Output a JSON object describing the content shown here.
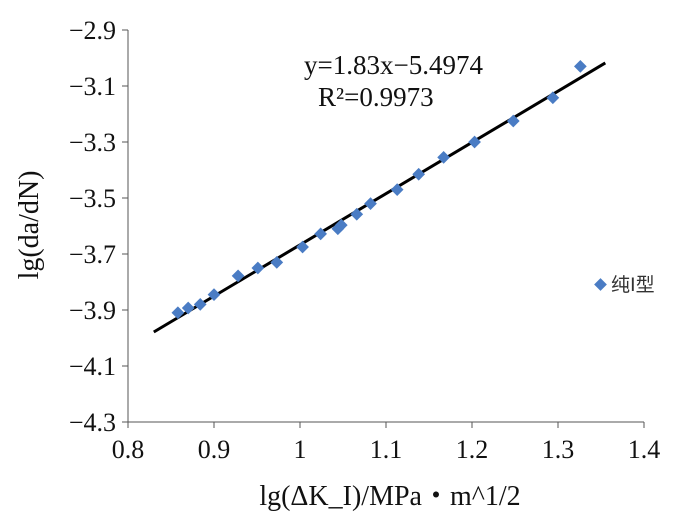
{
  "chart_data": {
    "type": "scatter",
    "xlabel": "lg(ΔK_I)/MPa・m^1/2",
    "ylabel": "lg(da/dN)",
    "xlim": [
      0.8,
      1.4
    ],
    "ylim": [
      -4.3,
      -2.9
    ],
    "x_ticks": [
      "0.8",
      "0.9",
      "1",
      "1.1",
      "1.2",
      "1.3",
      "1.4"
    ],
    "y_ticks": [
      "-2.9",
      "-3.1",
      "-3.3",
      "-3.5",
      "-3.7",
      "-3.9",
      "-4.1",
      "-4.3"
    ],
    "grid": false,
    "legend_position": "right",
    "marker_color": "#4a7cc4",
    "line_color": "#000000",
    "series": [
      {
        "name": "纯Ⅰ型",
        "x": [
          0.858,
          0.87,
          0.884,
          0.9,
          0.928,
          0.951,
          0.973,
          1.003,
          1.024,
          1.044,
          1.048,
          1.066,
          1.082,
          1.113,
          1.138,
          1.167,
          1.203,
          1.248,
          1.294,
          1.326
        ],
        "y": [
          -3.91,
          -3.893,
          -3.88,
          -3.845,
          -3.778,
          -3.75,
          -3.73,
          -3.675,
          -3.628,
          -3.61,
          -3.597,
          -3.558,
          -3.52,
          -3.47,
          -3.415,
          -3.355,
          -3.3,
          -3.225,
          -3.142,
          -3.03
        ]
      }
    ],
    "trendline": {
      "slope": 1.83,
      "intercept": -5.4974,
      "x_start": 0.83,
      "x_end": 1.355,
      "equation_label": "y=1.83x−5.4974",
      "r2_label": "R²=0.9973"
    }
  }
}
